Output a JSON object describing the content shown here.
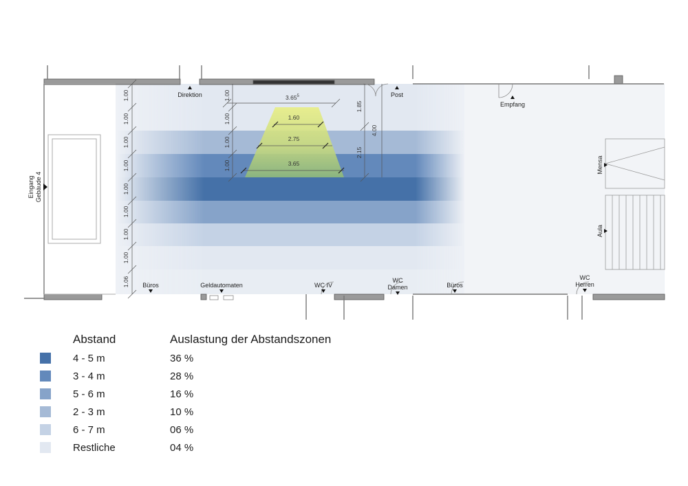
{
  "rooms": {
    "direktion": "Direktion",
    "post": "Post",
    "empfang": "Empfang",
    "mensa": "Mensa",
    "aula": "Aula",
    "eingang": "Eingang",
    "gebaeude": "Gebäude 4",
    "bueros_left": "Büros",
    "geldautomaten": "Geldautomaten",
    "wc_iv": "WC IV",
    "wc_damen_1": "WC",
    "wc_damen_2": "Damen",
    "bueros_right": "Büros",
    "wc_herren_1": "WC",
    "wc_herren_2": "Herren"
  },
  "dimensions": {
    "left_column": [
      "1.00",
      "1.00",
      "1.00",
      "1.00",
      "1.00",
      "1.00",
      "1.00",
      "1.00",
      "1.06"
    ],
    "inner_column": [
      "1.00",
      "1.00",
      "1.00",
      "1.00"
    ],
    "top_width": "3.65",
    "top_width_sup": "5",
    "view_cone": [
      "1.60",
      "2.75",
      "3.65"
    ],
    "right_a": "1.85",
    "right_b": "2.15",
    "right_total": "4.00"
  },
  "legend": {
    "title_left": "Abstand",
    "title_right": "Auslastung der Abstandszonen",
    "items": [
      {
        "label": "4 - 5 m",
        "value": "36 %",
        "color": "#4571a8"
      },
      {
        "label": "3 - 4 m",
        "value": "28 %",
        "color": "#6389bb"
      },
      {
        "label": "5 - 6 m",
        "value": "16 %",
        "color": "#86a3c9"
      },
      {
        "label": "2 - 3 m",
        "value": "10 %",
        "color": "#a5bad6"
      },
      {
        "label": "6 - 7 m",
        "value": "06 %",
        "color": "#c4d2e5"
      },
      {
        "label": "Restliche",
        "value": "04 %",
        "color": "#e2e8f1"
      }
    ]
  },
  "colors": {
    "band_darkest": "#4571a8",
    "band_dark": "#6389bb",
    "band_mid": "#86a3c9",
    "band_light": "#a5bad6",
    "band_lighter": "#c4d2e5",
    "band_lightest": "#e2e8f1",
    "cone_top": "#e6ec86",
    "cone_bottom": "#9bc079",
    "wall": "#8a8a8a"
  }
}
